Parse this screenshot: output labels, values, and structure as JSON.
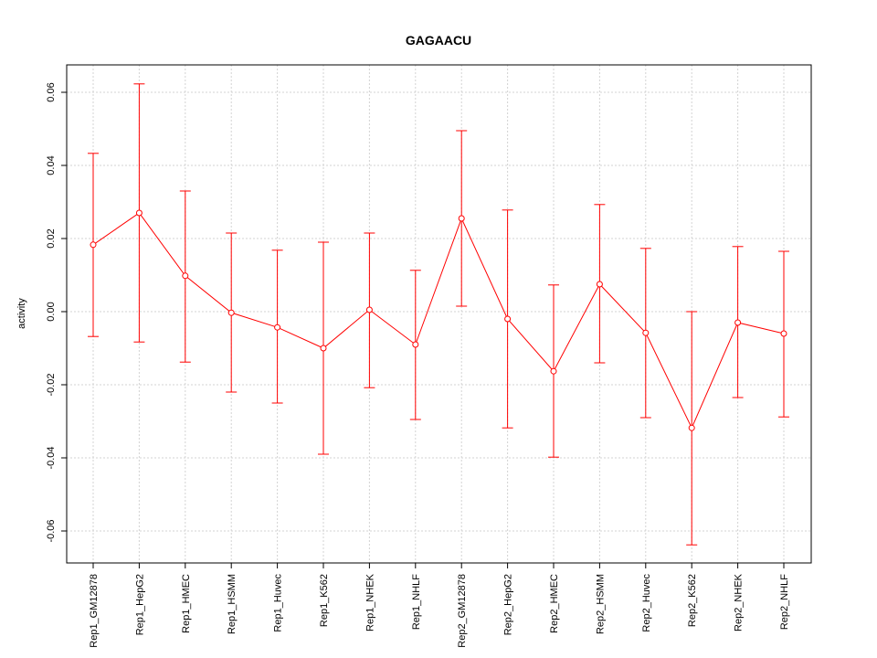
{
  "chart_data": {
    "type": "line",
    "title": "GAGAACU",
    "xlabel": "",
    "ylabel": "activity",
    "ylim": [
      -0.06875,
      0.0675
    ],
    "yticks": [
      "-0.06",
      "-0.04",
      "-0.02",
      "0.00",
      "0.02",
      "0.04",
      "0.06"
    ],
    "ytick_values": [
      -0.06,
      -0.04,
      -0.02,
      0.0,
      0.02,
      0.04,
      0.06
    ],
    "grid": true,
    "color": "#ff0000",
    "categories": [
      "Rep1_GM12878",
      "Rep1_HepG2",
      "Rep1_HMEC",
      "Rep1_HSMM",
      "Rep1_Huvec",
      "Rep1_K562",
      "Rep1_NHEK",
      "Rep1_NHLF",
      "Rep2_GM12878",
      "Rep2_HepG2",
      "Rep2_HMEC",
      "Rep2_HSMM",
      "Rep2_Huvec",
      "Rep2_K562",
      "Rep2_NHEK",
      "Rep2_NHLF"
    ],
    "values": [
      0.0183,
      0.027,
      0.0098,
      -0.0003,
      -0.0043,
      -0.01,
      0.0005,
      -0.009,
      0.0255,
      -0.002,
      -0.0163,
      0.0075,
      -0.0058,
      -0.0318,
      -0.003,
      -0.006
    ],
    "upper": [
      0.0433,
      0.0623,
      0.033,
      0.0215,
      0.0168,
      0.019,
      0.0215,
      0.0113,
      0.0495,
      0.0278,
      0.0073,
      0.0293,
      0.0173,
      0.0,
      0.0178,
      0.0165
    ],
    "lower": [
      -0.0068,
      -0.0083,
      -0.0138,
      -0.022,
      -0.025,
      -0.039,
      -0.0208,
      -0.0295,
      0.0015,
      -0.0318,
      -0.0398,
      -0.014,
      -0.029,
      -0.0638,
      -0.0235,
      -0.0288
    ]
  }
}
